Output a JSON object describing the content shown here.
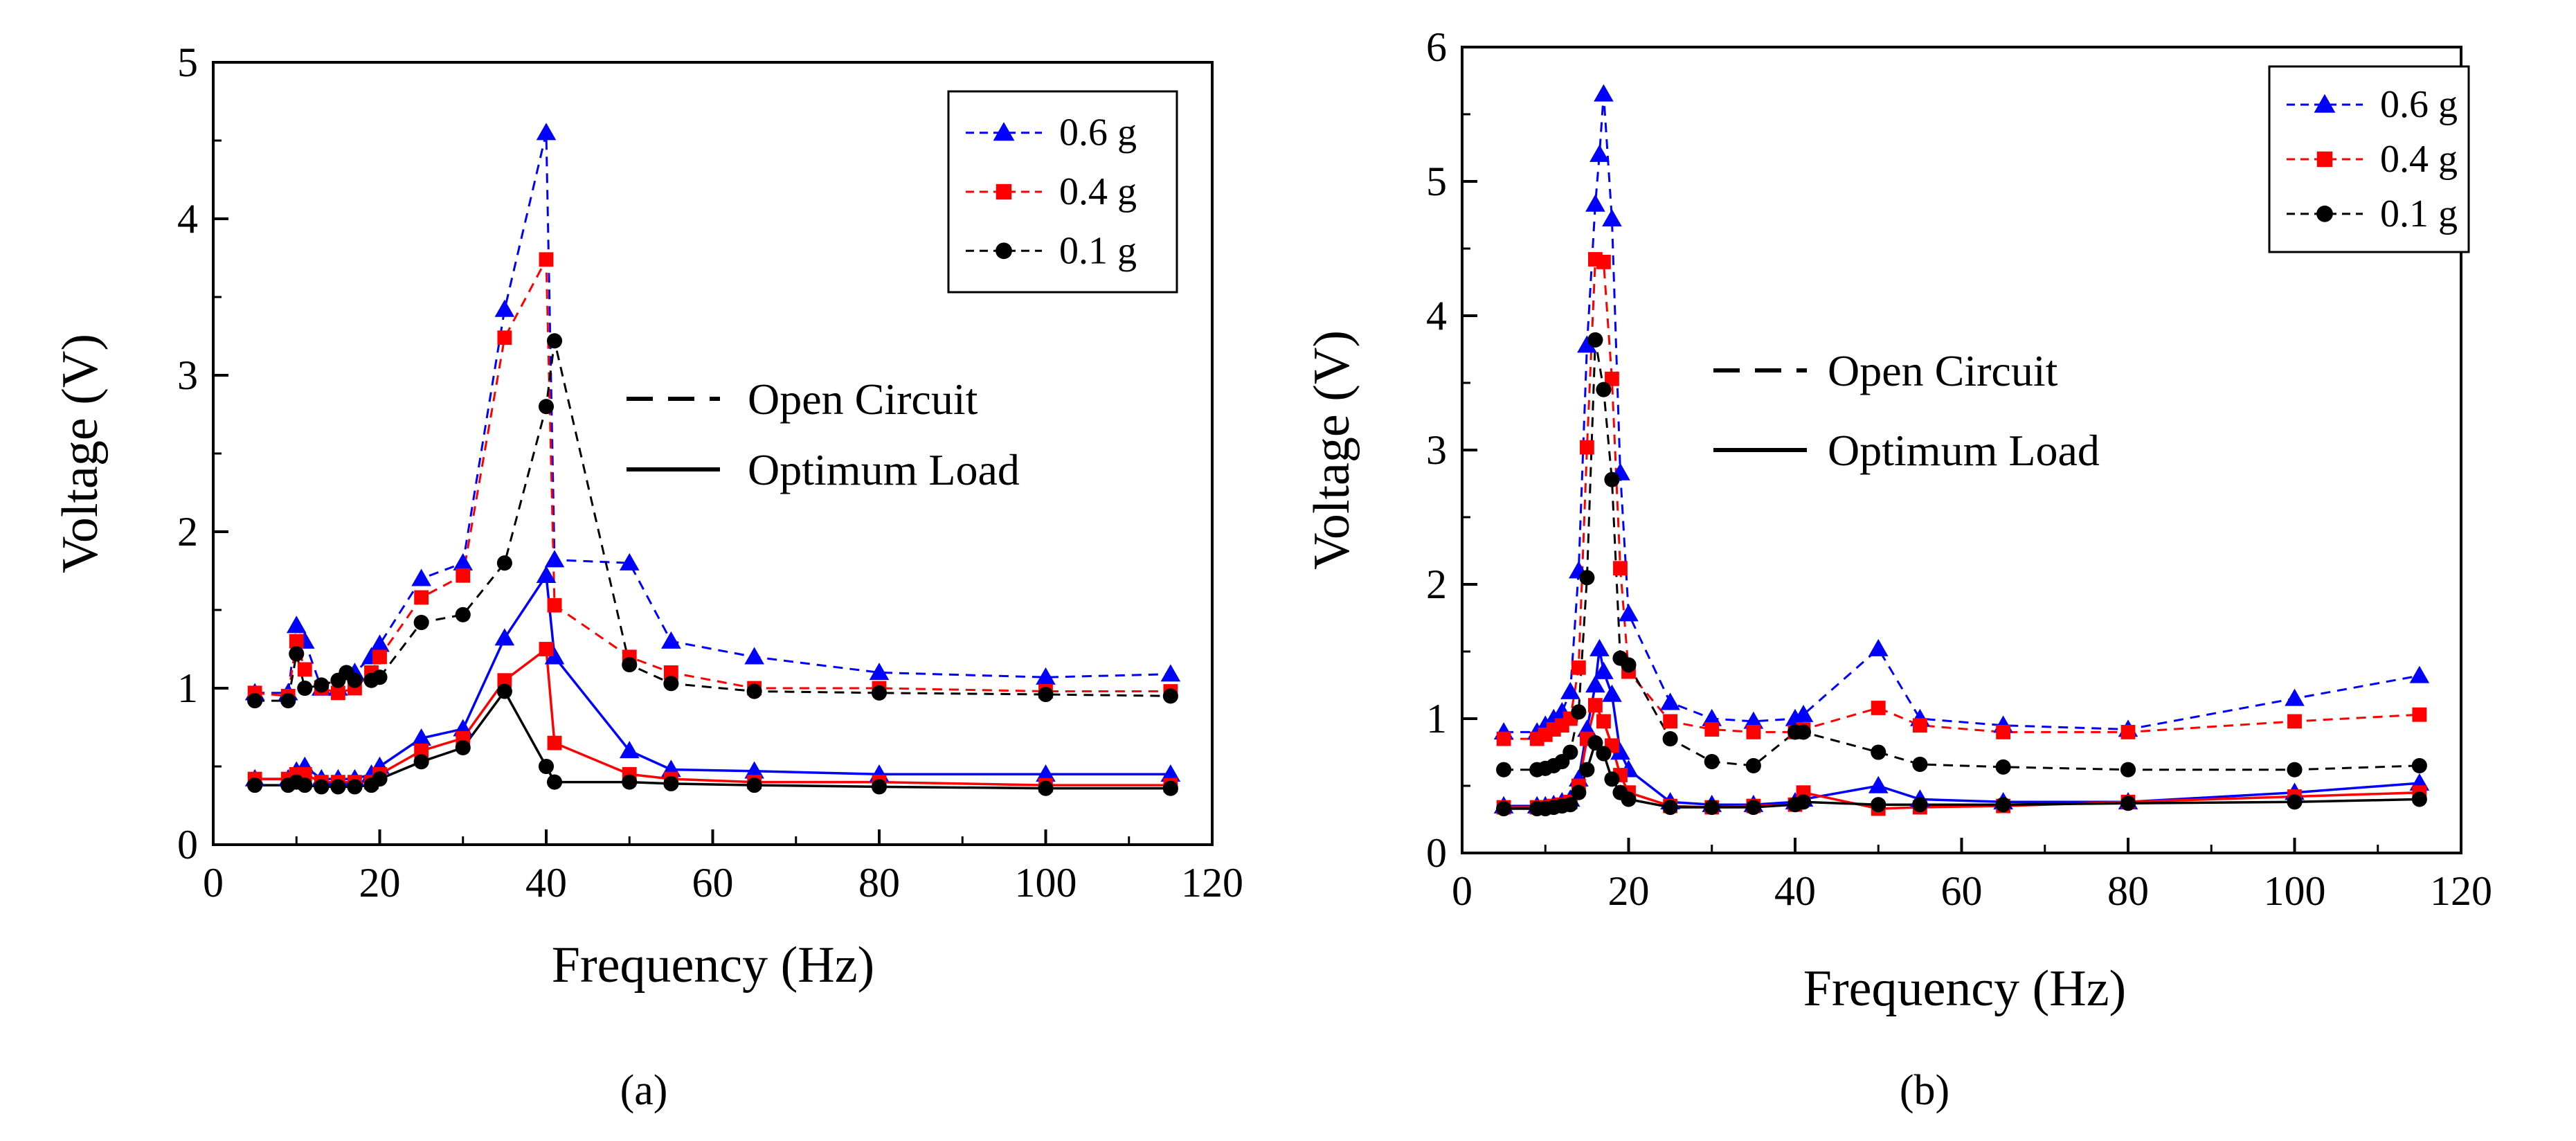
{
  "chart_data": [
    {
      "type": "line",
      "panel_label": "(a)",
      "xlabel": "Frequency (Hz)",
      "ylabel": "Voltage (V)",
      "xlim": [
        0,
        120
      ],
      "ylim": [
        0,
        5
      ],
      "xticks": [
        0,
        20,
        40,
        60,
        80,
        100,
        120
      ],
      "yticks": [
        0,
        1,
        2,
        3,
        4,
        5
      ],
      "legend_position": "top-right",
      "line_style_legend": [
        {
          "label": "Open Circuit",
          "style": "dashed"
        },
        {
          "label": "Optimum Load",
          "style": "solid"
        }
      ],
      "series": [
        {
          "name": "0.6 g",
          "marker": "triangle",
          "color": "#0000ff",
          "style": "dashed",
          "x": [
            5,
            9,
            10,
            11,
            13,
            15,
            17,
            19,
            20,
            25,
            30,
            35,
            40,
            41,
            50,
            55,
            65,
            80,
            100,
            115
          ],
          "y": [
            0.97,
            0.97,
            1.4,
            1.3,
            1.0,
            1.0,
            1.1,
            1.2,
            1.28,
            1.7,
            1.8,
            3.42,
            4.55,
            1.82,
            1.8,
            1.3,
            1.2,
            1.1,
            1.07,
            1.09
          ]
        },
        {
          "name": "0.4 g",
          "marker": "square",
          "color": "#ff0000",
          "style": "dashed",
          "x": [
            5,
            9,
            10,
            11,
            13,
            15,
            17,
            19,
            20,
            25,
            30,
            35,
            40,
            41,
            50,
            55,
            65,
            80,
            100,
            115
          ],
          "y": [
            0.97,
            0.95,
            1.3,
            1.12,
            1.0,
            0.97,
            1.0,
            1.1,
            1.2,
            1.58,
            1.72,
            3.24,
            3.74,
            1.53,
            1.2,
            1.1,
            1.0,
            1.0,
            0.98,
            0.98
          ]
        },
        {
          "name": "0.1 g",
          "marker": "circle",
          "color": "#000000",
          "style": "dashed",
          "x": [
            5,
            9,
            10,
            11,
            13,
            15,
            16,
            17,
            19,
            20,
            25,
            30,
            35,
            40,
            41,
            50,
            55,
            65,
            80,
            100,
            115
          ],
          "y": [
            0.92,
            0.92,
            1.22,
            1.0,
            1.02,
            1.05,
            1.1,
            1.05,
            1.05,
            1.07,
            1.42,
            1.47,
            1.8,
            2.8,
            3.22,
            1.15,
            1.03,
            0.98,
            0.97,
            0.96,
            0.95
          ]
        },
        {
          "name": "0.6 g",
          "marker": "triangle",
          "color": "#0000ff",
          "style": "solid",
          "x": [
            5,
            9,
            10,
            11,
            13,
            15,
            17,
            19,
            20,
            25,
            30,
            35,
            40,
            41,
            50,
            55,
            65,
            80,
            100,
            115
          ],
          "y": [
            0.42,
            0.42,
            0.47,
            0.5,
            0.42,
            0.42,
            0.42,
            0.45,
            0.5,
            0.68,
            0.74,
            1.32,
            1.72,
            1.2,
            0.6,
            0.48,
            0.47,
            0.45,
            0.45,
            0.45
          ]
        },
        {
          "name": "0.4 g",
          "marker": "square",
          "color": "#ff0000",
          "style": "solid",
          "x": [
            5,
            9,
            10,
            11,
            13,
            15,
            17,
            19,
            20,
            25,
            30,
            35,
            40,
            41,
            50,
            55,
            65,
            80,
            100,
            115
          ],
          "y": [
            0.42,
            0.42,
            0.45,
            0.45,
            0.4,
            0.4,
            0.4,
            0.4,
            0.45,
            0.6,
            0.68,
            1.05,
            1.25,
            0.65,
            0.45,
            0.42,
            0.4,
            0.4,
            0.38,
            0.38
          ]
        },
        {
          "name": "0.1 g",
          "marker": "circle",
          "color": "#000000",
          "style": "solid",
          "x": [
            5,
            9,
            10,
            11,
            13,
            15,
            17,
            19,
            20,
            25,
            30,
            35,
            40,
            41,
            50,
            55,
            65,
            80,
            100,
            115
          ],
          "y": [
            0.38,
            0.38,
            0.4,
            0.38,
            0.37,
            0.37,
            0.37,
            0.38,
            0.42,
            0.53,
            0.62,
            0.98,
            0.5,
            0.4,
            0.4,
            0.39,
            0.38,
            0.37,
            0.36,
            0.36
          ]
        }
      ]
    },
    {
      "type": "line",
      "panel_label": "(b)",
      "xlabel": "Frequency (Hz)",
      "ylabel": "Voltage (V)",
      "xlim": [
        0,
        120
      ],
      "ylim": [
        0,
        6
      ],
      "xticks": [
        0,
        20,
        40,
        60,
        80,
        100,
        120
      ],
      "yticks": [
        0,
        1,
        2,
        3,
        4,
        5,
        6
      ],
      "legend_position": "top-right",
      "line_style_legend": [
        {
          "label": "Open Circuit",
          "style": "dashed"
        },
        {
          "label": "Optimum Load",
          "style": "solid"
        }
      ],
      "series": [
        {
          "name": "0.6 g",
          "marker": "triangle",
          "color": "#0000ff",
          "style": "dashed",
          "x": [
            5,
            9,
            10,
            11,
            12,
            13,
            14,
            15,
            16,
            16.5,
            17,
            18,
            19,
            20,
            25,
            30,
            35,
            40,
            41,
            50,
            55,
            65,
            80,
            100,
            115
          ],
          "y": [
            0.9,
            0.9,
            0.95,
            1.0,
            1.05,
            1.2,
            2.1,
            3.78,
            4.83,
            5.2,
            5.65,
            4.72,
            2.83,
            1.78,
            1.12,
            1.0,
            0.98,
            1.0,
            1.03,
            1.52,
            1.0,
            0.95,
            0.92,
            1.15,
            1.32
          ]
        },
        {
          "name": "0.4 g",
          "marker": "square",
          "color": "#ff0000",
          "style": "dashed",
          "x": [
            5,
            9,
            10,
            11,
            12,
            13,
            14,
            15,
            16,
            17,
            18,
            19,
            20,
            25,
            30,
            35,
            40,
            41,
            50,
            55,
            65,
            80,
            100,
            115
          ],
          "y": [
            0.85,
            0.85,
            0.88,
            0.92,
            0.95,
            1.0,
            1.38,
            3.02,
            4.42,
            4.4,
            3.53,
            2.12,
            1.35,
            0.98,
            0.92,
            0.9,
            0.9,
            0.92,
            1.08,
            0.95,
            0.9,
            0.9,
            0.98,
            1.03
          ]
        },
        {
          "name": "0.1 g",
          "marker": "circle",
          "color": "#000000",
          "style": "dashed",
          "x": [
            5,
            9,
            10,
            11,
            12,
            13,
            14,
            15,
            16,
            17,
            18,
            19,
            20,
            25,
            30,
            35,
            40,
            41,
            50,
            55,
            65,
            80,
            100,
            115
          ],
          "y": [
            0.62,
            0.62,
            0.63,
            0.65,
            0.68,
            0.75,
            1.05,
            2.05,
            3.82,
            3.45,
            2.78,
            1.45,
            1.4,
            0.85,
            0.68,
            0.65,
            0.9,
            0.9,
            0.75,
            0.66,
            0.64,
            0.62,
            0.62,
            0.65
          ]
        },
        {
          "name": "0.6 g",
          "marker": "triangle",
          "color": "#0000ff",
          "style": "solid",
          "x": [
            5,
            9,
            10,
            11,
            12,
            13,
            14,
            15,
            16,
            16.5,
            17,
            18,
            19,
            20,
            25,
            30,
            35,
            40,
            41,
            50,
            55,
            65,
            80,
            100,
            115
          ],
          "y": [
            0.35,
            0.35,
            0.35,
            0.36,
            0.38,
            0.4,
            0.55,
            0.92,
            1.25,
            1.52,
            1.35,
            1.18,
            0.75,
            0.62,
            0.38,
            0.36,
            0.36,
            0.38,
            0.4,
            0.5,
            0.4,
            0.38,
            0.38,
            0.45,
            0.52
          ]
        },
        {
          "name": "0.4 g",
          "marker": "square",
          "color": "#ff0000",
          "style": "solid",
          "x": [
            5,
            9,
            10,
            11,
            12,
            13,
            14,
            15,
            16,
            17,
            18,
            19,
            20,
            25,
            30,
            35,
            40,
            41,
            50,
            55,
            65,
            80,
            100,
            115
          ],
          "y": [
            0.34,
            0.34,
            0.34,
            0.35,
            0.36,
            0.38,
            0.5,
            0.85,
            1.1,
            0.98,
            0.8,
            0.58,
            0.45,
            0.35,
            0.34,
            0.35,
            0.36,
            0.45,
            0.33,
            0.34,
            0.35,
            0.38,
            0.42,
            0.45
          ]
        },
        {
          "name": "0.1 g",
          "marker": "circle",
          "color": "#000000",
          "style": "solid",
          "x": [
            5,
            9,
            10,
            11,
            12,
            13,
            14,
            15,
            16,
            17,
            18,
            19,
            20,
            25,
            30,
            35,
            40,
            41,
            50,
            55,
            65,
            80,
            100,
            115
          ],
          "y": [
            0.33,
            0.33,
            0.33,
            0.34,
            0.35,
            0.36,
            0.45,
            0.62,
            0.82,
            0.74,
            0.55,
            0.45,
            0.4,
            0.34,
            0.34,
            0.34,
            0.36,
            0.38,
            0.36,
            0.36,
            0.36,
            0.37,
            0.38,
            0.4
          ]
        }
      ]
    }
  ]
}
